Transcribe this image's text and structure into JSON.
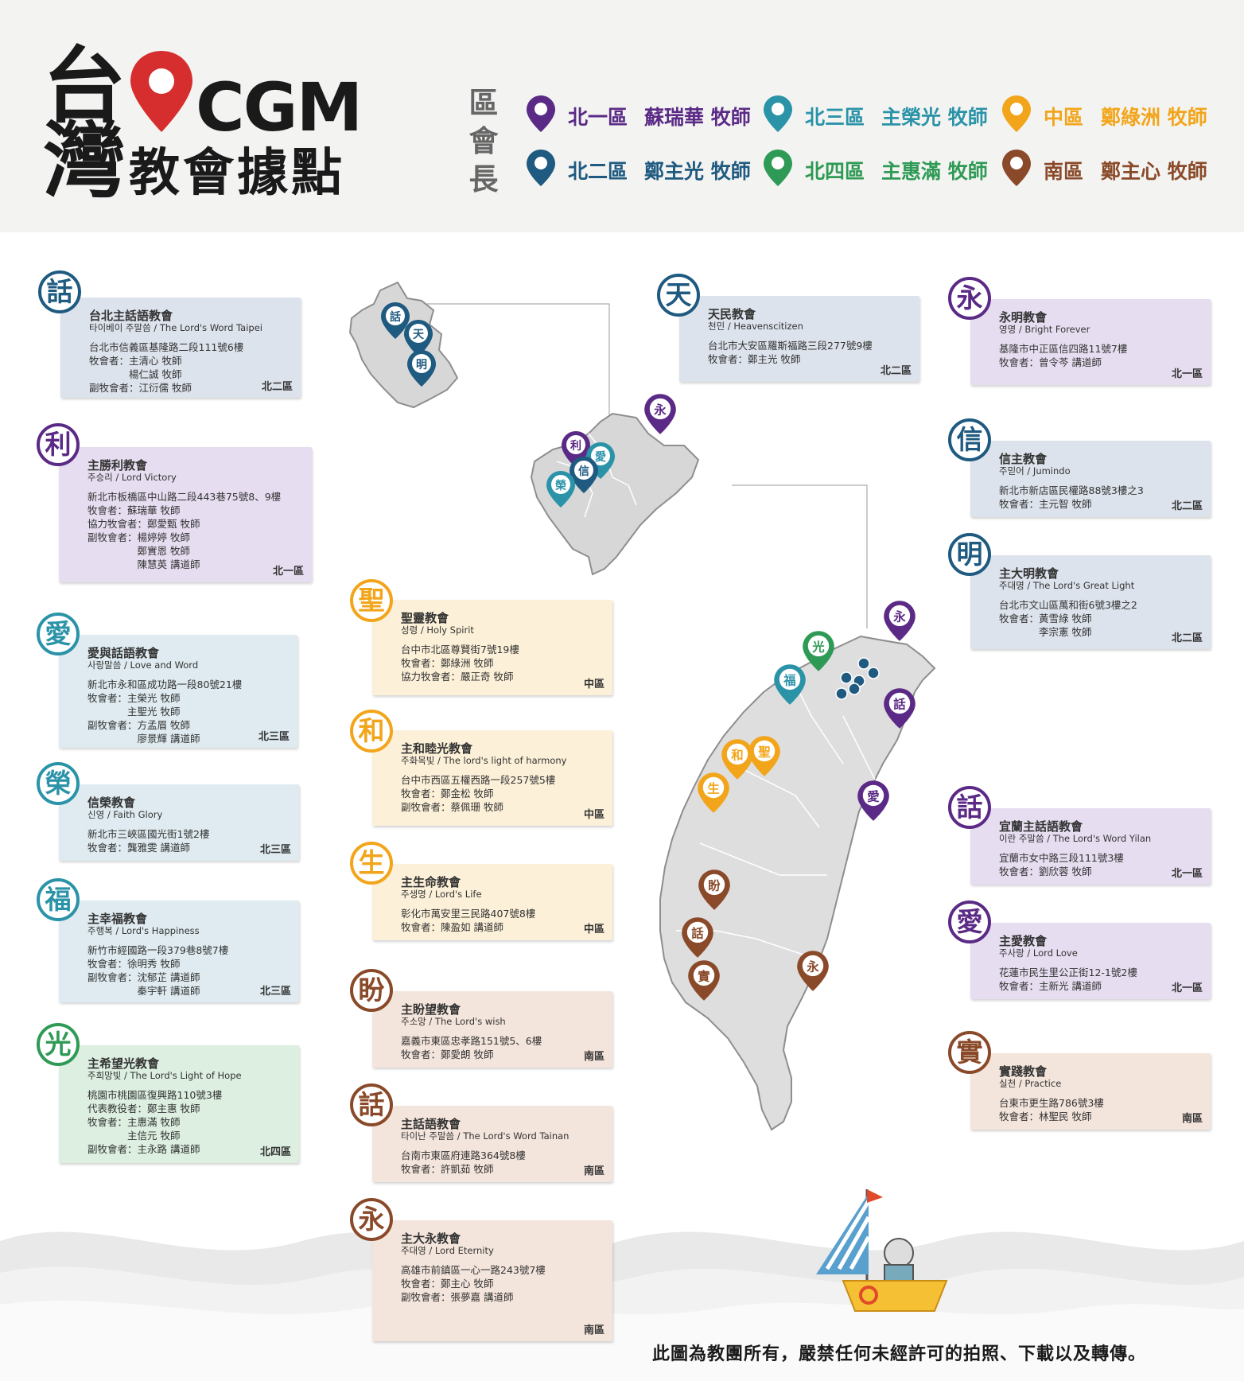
{
  "title": {
    "line1": "台",
    "line2": "灣",
    "brand": "CGM",
    "subtitle": "教會據點"
  },
  "colors": {
    "north1": "#5b2a86",
    "north2": "#1f5a80",
    "north3": "#2a93a8",
    "north4": "#2f9a55",
    "central": "#f2a51a",
    "south": "#8a4a2a",
    "bg_north1": "#e6ddf0",
    "bg_north2": "#dde3ec",
    "bg_north3": "#dfebf0",
    "bg_north4": "#dcefe0",
    "bg_central": "#fcf0d8",
    "bg_south": "#f4e5dc"
  },
  "legend": {
    "caption": "區會長",
    "items": [
      {
        "region": "北一區",
        "pastor": "蘇瑞華 牧師",
        "color": "#5b2a86"
      },
      {
        "region": "北二區",
        "pastor": "鄭主光 牧師",
        "color": "#1f5a80"
      },
      {
        "region": "北三區",
        "pastor": "主榮光 牧師",
        "color": "#2a93a8"
      },
      {
        "region": "北四區",
        "pastor": "主惠滿 牧師",
        "color": "#2f9a55"
      },
      {
        "region": "中區",
        "pastor": "鄭綠洲 牧師",
        "color": "#f2a51a"
      },
      {
        "region": "南區",
        "pastor": "鄭主心 牧師",
        "color": "#8a4a2a"
      }
    ]
  },
  "churches": [
    {
      "icon": "話",
      "name": "台北主話語教會",
      "sub": "타이베이 주말씀 / The Lord's Word Taipei",
      "lines": [
        "台北市信義區基隆路二段111號6樓",
        "牧會者：主清心 牧師",
        "　　　　楊仁誠 牧師",
        "副牧會者：江衍儒 牧師"
      ],
      "region": "北二區",
      "color": "#1f5a80",
      "bg": "#dde3ec"
    },
    {
      "icon": "利",
      "name": "主勝利教會",
      "sub": "주승리 / Lord Victory",
      "lines": [
        "新北市板橋區中山路二段443巷75號8、9樓",
        "牧會者：蘇瑞華 牧師",
        "協力牧會者：鄭愛甄 牧師",
        "副牧會者：楊婷婷 牧師",
        "　　　　　鄭實恩 牧師",
        "　　　　　陳慧英 講道師"
      ],
      "region": "北一區",
      "color": "#5b2a86",
      "bg": "#e6ddf0"
    },
    {
      "icon": "愛",
      "name": "愛與話語教會",
      "sub": "사랑말씀 / Love and Word",
      "lines": [
        "新北市永和區成功路一段80號21樓",
        "牧會者：主榮光 牧師",
        "　　　　主聖光 牧師",
        "副牧會者：方孟眉 牧師",
        "　　　　　廖景輝 講道師"
      ],
      "region": "北三區",
      "color": "#2a93a8",
      "bg": "#dfebf0"
    },
    {
      "icon": "榮",
      "name": "信榮教會",
      "sub": "신영 / Faith Glory",
      "lines": [
        "新北市三峽區國光街1號2樓",
        "牧會者：龔雅雯 講道師"
      ],
      "region": "北三區",
      "color": "#2a93a8",
      "bg": "#dfebf0"
    },
    {
      "icon": "福",
      "name": "主幸福教會",
      "sub": "주행복 / Lord's Happiness",
      "lines": [
        "新竹市經國路一段379巷8號7樓",
        "牧會者：徐明秀 牧師",
        "副牧會者：沈郁芷 講道師",
        "　　　　　秦宇軒 講道師"
      ],
      "region": "北三區",
      "color": "#2a93a8",
      "bg": "#dfebf0"
    },
    {
      "icon": "光",
      "name": "主希望光教會",
      "sub": "주희망빛 / The Lord's Light of Hope",
      "lines": [
        "桃園市桃園區復興路110號3樓",
        "代表教役者：鄭主惠 牧師",
        "牧會者：主惠滿 牧師",
        "　　　　主信元 牧師",
        "副牧會者：主永路 講道師"
      ],
      "region": "北四區",
      "color": "#2f9a55",
      "bg": "#dcefe0"
    },
    {
      "icon": "聖",
      "name": "聖靈教會",
      "sub": "성령 / Holy Spirit",
      "lines": [
        "台中市北區尊賢街7號19樓",
        "牧會者：鄭綠洲 牧師",
        "協力牧會者：嚴正奇 牧師"
      ],
      "region": "中區",
      "color": "#f2a51a",
      "bg": "#fcf0d8"
    },
    {
      "icon": "和",
      "name": "主和睦光教會",
      "sub": "주화목빛 / The lord's light of harmony",
      "lines": [
        "台中市西區五權西路一段257號5樓",
        "牧會者：鄭金松 牧師",
        "副牧會者：蔡佩珊 牧師"
      ],
      "region": "中區",
      "color": "#f2a51a",
      "bg": "#fcf0d8"
    },
    {
      "icon": "生",
      "name": "主生命教會",
      "sub": "주생명 / Lord's Life",
      "lines": [
        "彰化市萬安里三民路407號8樓",
        "牧會者：陳盈如 講道師"
      ],
      "region": "中區",
      "color": "#f2a51a",
      "bg": "#fcf0d8"
    },
    {
      "icon": "盼",
      "name": "主盼望教會",
      "sub": "주소망 / The Lord's wish",
      "lines": [
        "嘉義市東區忠孝路151號5、6樓",
        "牧會者：鄭愛朗 牧師"
      ],
      "region": "南區",
      "color": "#8a4a2a",
      "bg": "#f4e5dc"
    },
    {
      "icon": "話",
      "name": "主話語教會",
      "sub": "타이난 주말씀 / The Lord's Word Tainan",
      "lines": [
        "台南市東區府連路364號8樓",
        "牧會者：許凱茹 牧師"
      ],
      "region": "南區",
      "color": "#8a4a2a",
      "bg": "#f4e5dc"
    },
    {
      "icon": "永",
      "name": "主大永教會",
      "sub": "주대영 / Lord Eternity",
      "lines": [
        "高雄市前鎮區一心一路243號7樓",
        "牧會者：鄭主心 牧師",
        "副牧會者：張夢嘉 講道師"
      ],
      "region": "南區",
      "color": "#8a4a2a",
      "bg": "#f4e5dc"
    },
    {
      "icon": "天",
      "name": "天民教會",
      "sub": "천민 / Heavenscitizen",
      "lines": [
        "台北市大安區羅斯福路三段277號9樓",
        "牧會者：鄭主光 牧師"
      ],
      "region": "北二區",
      "color": "#1f5a80",
      "bg": "#dde3ec"
    },
    {
      "icon": "永",
      "name": "永明教會",
      "sub": "영명 / Bright Forever",
      "lines": [
        "基隆市中正區信四路11號7樓",
        "牧會者：曾令芩 講道師"
      ],
      "region": "北一區",
      "color": "#5b2a86",
      "bg": "#e6ddf0"
    },
    {
      "icon": "信",
      "name": "信主教會",
      "sub": "주믿어 / Jumindo",
      "lines": [
        "新北市新店區民權路88號3樓之3",
        "牧會者：主元智 牧師"
      ],
      "region": "北二區",
      "color": "#1f5a80",
      "bg": "#dde3ec"
    },
    {
      "icon": "明",
      "name": "主大明教會",
      "sub": "주대명 / The Lord's Great Light",
      "lines": [
        "台北市文山區萬和街6號3樓之2",
        "牧會者：黃雪綠 牧師",
        "　　　　李宗憲 牧師"
      ],
      "region": "北二區",
      "color": "#1f5a80",
      "bg": "#dde3ec"
    },
    {
      "icon": "話",
      "name": "宜蘭主話語教會",
      "sub": "이란 주말씀 / The Lord's Word Yilan",
      "lines": [
        "宜蘭市女中路三段111號3樓",
        "牧會者：劉欣蓉 牧師"
      ],
      "region": "北一區",
      "color": "#5b2a86",
      "bg": "#e6ddf0"
    },
    {
      "icon": "愛",
      "name": "主愛教會",
      "sub": "주사랑 / Lord Love",
      "lines": [
        "花蓮市民生里公正街12-1號2樓",
        "牧會者：主新光 講道師"
      ],
      "region": "北一區",
      "color": "#5b2a86",
      "bg": "#e6ddf0"
    },
    {
      "icon": "實",
      "name": "實踐教會",
      "sub": "실천 / Practice",
      "lines": [
        "台東市更生路786號3樓",
        "牧會者：林聖民 牧師"
      ],
      "region": "南區",
      "color": "#8a4a2a",
      "bg": "#f4e5dc"
    }
  ],
  "map_pins": {
    "taipei_detail": [
      "話",
      "天",
      "明"
    ],
    "new_taipei_detail": [
      "永",
      "利",
      "愛",
      "信",
      "榮"
    ],
    "taiwan": [
      "永",
      "光",
      "福",
      "話",
      "和",
      "聖",
      "生",
      "愛",
      "盼",
      "話",
      "實",
      "永"
    ]
  },
  "footer": "此圖為教團所有，嚴禁任何未經許可的拍照、下載以及轉傳。"
}
